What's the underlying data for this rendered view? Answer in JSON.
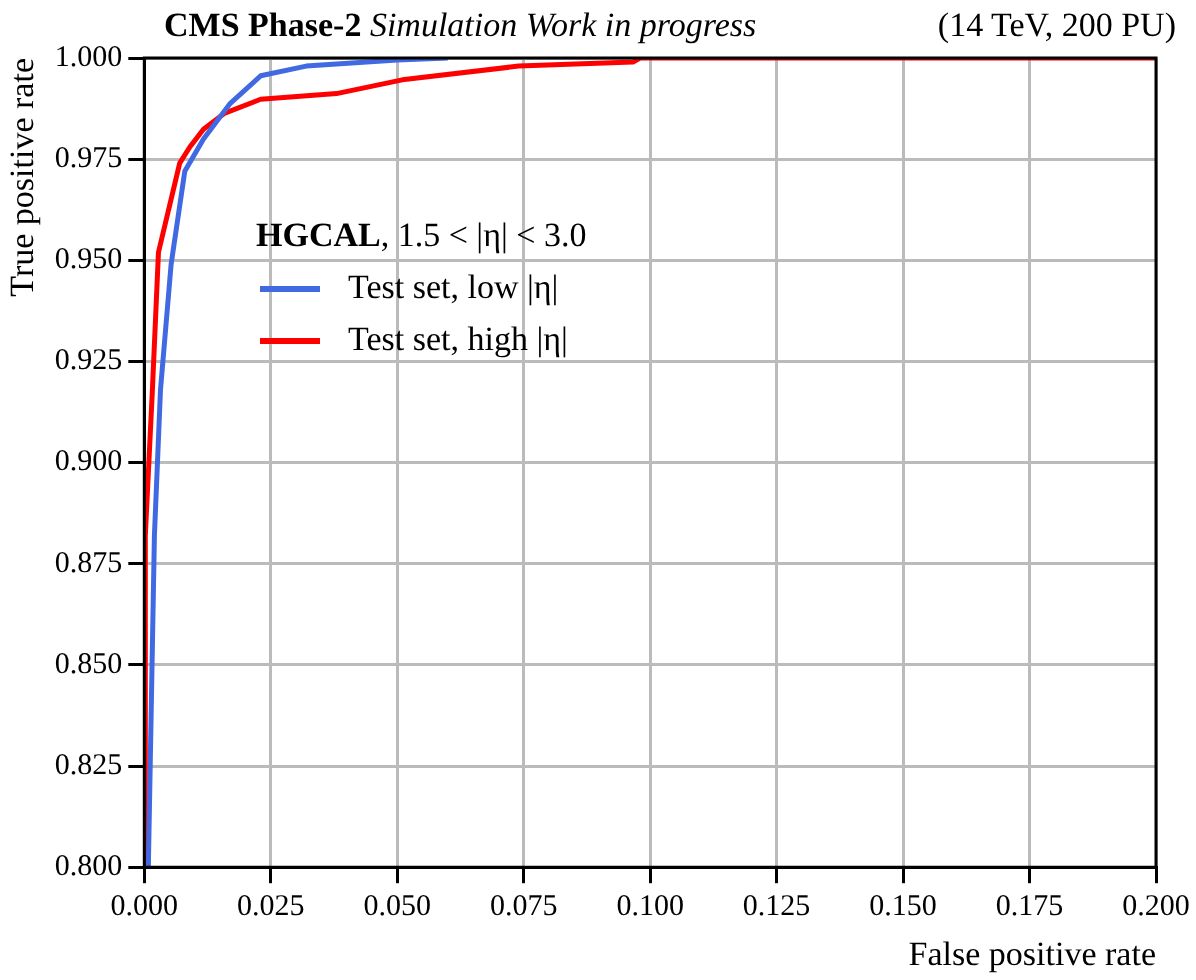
{
  "chart_data": {
    "type": "line",
    "title": "CMS Phase-2 Simulation Work in progress",
    "annotations": [
      "(14 TeV, 200 PU)"
    ],
    "xlabel": "False positive rate",
    "ylabel": "True positive rate",
    "legend_title": "HGCAL, 1.5 < |η| < 3.0",
    "legend": "top left",
    "grid": true,
    "xlim": [
      0,
      0.2
    ],
    "ylim": [
      0.8,
      1.0
    ],
    "xticks": [
      {
        "value": 0,
        "label": "0.000"
      },
      {
        "value": 0.025,
        "label": "0.025"
      },
      {
        "value": 0.05,
        "label": "0.050"
      },
      {
        "value": 0.075,
        "label": "0.075"
      },
      {
        "value": 0.1,
        "label": "0.100"
      },
      {
        "value": 0.125,
        "label": "0.125"
      },
      {
        "value": 0.15,
        "label": "0.150"
      },
      {
        "value": 0.175,
        "label": "0.175"
      },
      {
        "value": 0.2,
        "label": "0.200"
      }
    ],
    "yticks": [
      {
        "value": 0.8,
        "label": "0.800"
      },
      {
        "value": 0.825,
        "label": "0.825"
      },
      {
        "value": 0.85,
        "label": "0.850"
      },
      {
        "value": 0.875,
        "label": "0.875"
      },
      {
        "value": 0.9,
        "label": "0.900"
      },
      {
        "value": 0.925,
        "label": "0.925"
      },
      {
        "value": 0.95,
        "label": "0.950"
      },
      {
        "value": 0.975,
        "label": "0.975"
      },
      {
        "value": 1.0,
        "label": "1.000"
      }
    ],
    "series": [
      {
        "name": "Test set, low |η|",
        "color": "#4169e1",
        "x": [
          0.0008,
          0.002,
          0.0032,
          0.0053,
          0.008,
          0.0117,
          0.017,
          0.023,
          0.032,
          0.05,
          0.06
        ],
        "values": [
          0.8,
          0.882,
          0.918,
          0.949,
          0.972,
          0.98,
          0.9888,
          0.9956,
          0.998,
          0.9995,
          1.0
        ]
      },
      {
        "name": "Test set, high |η|",
        "color": "#ff0000",
        "x": [
          0.0002,
          0.0002,
          0.0016,
          0.0028,
          0.007,
          0.009,
          0.0117,
          0.0158,
          0.023,
          0.038,
          0.051,
          0.074,
          0.0966,
          0.098,
          0.2
        ],
        "values": [
          0.8,
          0.882,
          0.918,
          0.952,
          0.974,
          0.978,
          0.9824,
          0.9863,
          0.9898,
          0.9912,
          0.9946,
          0.998,
          0.999,
          1.0,
          1.0
        ]
      }
    ]
  }
}
